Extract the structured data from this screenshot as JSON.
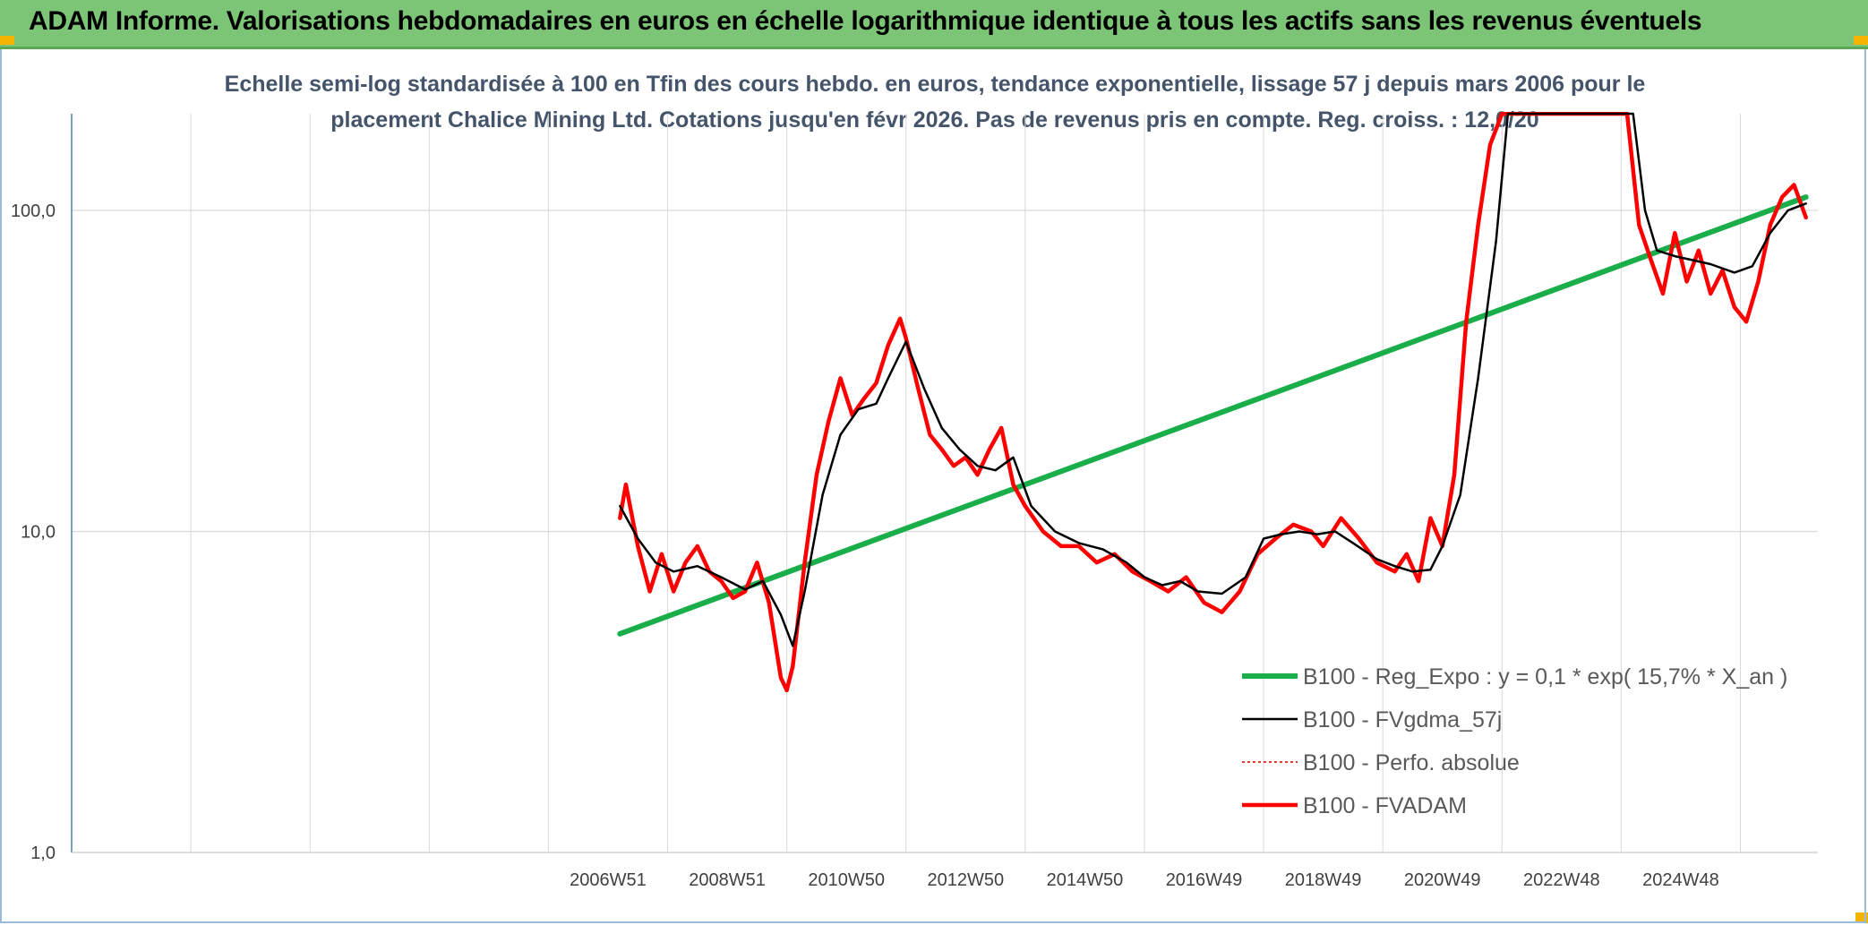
{
  "banner": {
    "title": "ADAM Informe. Valorisations hebdomadaires en euros en échelle logarithmique identique à tous les actifs sans les revenus éventuels"
  },
  "colors": {
    "banner": "#7cc576",
    "trend": "#1aae4a",
    "smoothed": "#000000",
    "absolute": "#e83a2e",
    "fvadam": "#ff0000",
    "grid": "#d9d9d9",
    "axis": "#4f81bd"
  },
  "chart_data": {
    "type": "line",
    "subtitle_line1": "Echelle semi-log standardisée à 100 en Tfin des cours hebdo. en euros, tendance exponentielle, lissage 57 j depuis mars 2006 pour le",
    "subtitle_line2": "placement Chalice Mining Ltd. Cotations jusqu'en févr 2026. Pas de revenus pris en compte. Reg. croiss. : 12,0/20",
    "y_scale": "log",
    "ylim": [
      1,
      200
    ],
    "y_ticks": [
      "1,0",
      "10,0",
      "100,0"
    ],
    "x_ticks": [
      "2006W51",
      "2008W51",
      "2010W50",
      "2012W50",
      "2014W50",
      "2016W49",
      "2018W49",
      "2020W49",
      "2022W48",
      "2024W48"
    ],
    "xlim": [
      1997.0,
      2026.3
    ],
    "grid": true,
    "legend_position": "right",
    "series": [
      {
        "name": "B100 - Reg_Expo : y = 0,1 * exp( 15,7% *  X_an )",
        "style": "thick-green",
        "x": [
          2006.2,
          2026.1
        ],
        "y": [
          4.8,
          110
        ]
      },
      {
        "name": "B100 - FVgdma_57j",
        "style": "thin-black",
        "x": [
          2006.2,
          2006.5,
          2006.8,
          2007.1,
          2007.5,
          2007.9,
          2008.3,
          2008.6,
          2008.9,
          2009.1,
          2009.3,
          2009.6,
          2009.9,
          2010.2,
          2010.5,
          2010.7,
          2011.0,
          2011.3,
          2011.6,
          2011.9,
          2012.2,
          2012.5,
          2012.8,
          2013.1,
          2013.5,
          2013.9,
          2014.3,
          2014.7,
          2015.0,
          2015.3,
          2015.6,
          2015.9,
          2016.3,
          2016.7,
          2017.0,
          2017.3,
          2017.6,
          2017.9,
          2018.2,
          2018.5,
          2018.9,
          2019.2,
          2019.5,
          2019.8,
          2020.0,
          2020.3,
          2020.6,
          2020.9,
          2021.1,
          2023.2,
          2023.4,
          2023.6,
          2023.9,
          2024.2,
          2024.5,
          2024.9,
          2025.2,
          2025.5,
          2025.8,
          2026.1
        ],
        "y": [
          12.0,
          9.5,
          8.0,
          7.5,
          7.8,
          7.2,
          6.6,
          7.0,
          5.5,
          4.4,
          6.5,
          13.0,
          20.0,
          24.0,
          25.0,
          30.0,
          39.0,
          28.0,
          21.0,
          18.0,
          16.0,
          15.5,
          17.0,
          12.0,
          10.0,
          9.2,
          8.8,
          8.0,
          7.2,
          6.8,
          7.0,
          6.5,
          6.4,
          7.2,
          9.5,
          9.8,
          10.0,
          9.8,
          10.0,
          9.2,
          8.2,
          7.8,
          7.5,
          7.6,
          9.0,
          13.0,
          30.0,
          80.0,
          220.0,
          220.0,
          100.0,
          75.0,
          72.0,
          70.0,
          68.0,
          64.0,
          67.0,
          85.0,
          100.0,
          105.0
        ]
      },
      {
        "name": "B100 - Perfo. absolue",
        "style": "dotted-red",
        "x": [],
        "y": []
      },
      {
        "name": "B100 - FVADAM",
        "style": "thick-red",
        "x": [
          2006.2,
          2006.3,
          2006.5,
          2006.7,
          2006.9,
          2007.1,
          2007.3,
          2007.5,
          2007.7,
          2007.9,
          2008.1,
          2008.3,
          2008.5,
          2008.7,
          2008.9,
          2009.0,
          2009.1,
          2009.3,
          2009.5,
          2009.7,
          2009.9,
          2010.1,
          2010.3,
          2010.5,
          2010.7,
          2010.9,
          2011.0,
          2011.2,
          2011.4,
          2011.6,
          2011.8,
          2012.0,
          2012.2,
          2012.4,
          2012.6,
          2012.8,
          2013.0,
          2013.3,
          2013.6,
          2013.9,
          2014.2,
          2014.5,
          2014.8,
          2015.1,
          2015.4,
          2015.7,
          2016.0,
          2016.3,
          2016.6,
          2016.9,
          2017.2,
          2017.5,
          2017.8,
          2018.0,
          2018.3,
          2018.6,
          2018.9,
          2019.2,
          2019.4,
          2019.6,
          2019.8,
          2020.0,
          2020.2,
          2020.4,
          2020.6,
          2020.8,
          2021.0,
          2023.1,
          2023.3,
          2023.5,
          2023.7,
          2023.9,
          2024.1,
          2024.3,
          2024.5,
          2024.7,
          2024.9,
          2025.1,
          2025.3,
          2025.5,
          2025.7,
          2025.9,
          2026.1
        ],
        "y": [
          11.0,
          14.0,
          9.0,
          6.5,
          8.5,
          6.5,
          8.0,
          9.0,
          7.5,
          7.0,
          6.2,
          6.5,
          8.0,
          6.0,
          3.5,
          3.2,
          3.8,
          8.0,
          15.0,
          22.0,
          30.0,
          23.0,
          26.0,
          29.0,
          38.0,
          46.0,
          40.0,
          28.0,
          20.0,
          18.0,
          16.0,
          17.0,
          15.0,
          18.0,
          21.0,
          14.0,
          12.0,
          10.0,
          9.0,
          9.0,
          8.0,
          8.5,
          7.5,
          7.0,
          6.5,
          7.2,
          6.0,
          5.6,
          6.5,
          8.5,
          9.5,
          10.5,
          10.0,
          9.0,
          11.0,
          9.5,
          8.0,
          7.5,
          8.5,
          7.0,
          11.0,
          9.0,
          15.0,
          45.0,
          90.0,
          160.0,
          230.0,
          230.0,
          90.0,
          70.0,
          55.0,
          85.0,
          60.0,
          75.0,
          55.0,
          65.0,
          50.0,
          45.0,
          60.0,
          90.0,
          110.0,
          120.0,
          95.0
        ]
      }
    ]
  }
}
